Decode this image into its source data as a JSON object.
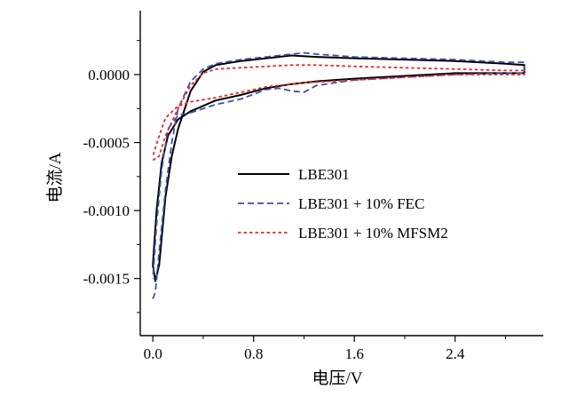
{
  "chart_data": {
    "type": "line",
    "title": "",
    "xlabel": "电压/V",
    "ylabel": "电流/A",
    "xlim": [
      -0.1,
      3.1
    ],
    "ylim": [
      -0.00192,
      0.00047
    ],
    "xticks": [
      0.0,
      0.8,
      1.6,
      2.4
    ],
    "xtick_labels": [
      "0.0",
      "0.8",
      "1.6",
      "2.4"
    ],
    "yticks": [
      0.0,
      -0.0005,
      -0.001,
      -0.0015
    ],
    "ytick_labels": [
      "0.0000",
      "-0.0005",
      "-0.0010",
      "-0.0015"
    ],
    "grid": false,
    "legend_position": "center-right",
    "series": [
      {
        "name": "LBE301",
        "color": "#000000",
        "dash": "solid",
        "x": [
          0.0,
          0.02,
          0.05,
          0.1,
          0.15,
          0.2,
          0.3,
          0.4,
          0.5,
          0.7,
          0.9,
          1.1,
          1.3,
          1.6,
          2.0,
          2.4,
          2.8,
          2.95,
          2.95,
          2.8,
          2.4,
          2.0,
          1.6,
          1.3,
          1.1,
          0.9,
          0.7,
          0.5,
          0.3,
          0.2,
          0.12,
          0.07,
          0.03,
          0.0
        ],
        "y": [
          -0.0014,
          -0.00152,
          -0.0014,
          -0.0009,
          -0.0006,
          -0.0004,
          -0.00012,
          2e-05,
          7e-05,
          0.0001,
          0.00012,
          0.00014,
          0.00013,
          0.00012,
          0.00011,
          0.0001,
          8e-05,
          7e-05,
          1e-05,
          1e-05,
          1e-05,
          -1e-05,
          -3e-05,
          -5e-05,
          -7e-05,
          -0.0001,
          -0.00015,
          -0.00019,
          -0.00027,
          -0.00033,
          -0.00045,
          -0.00065,
          -0.001,
          -0.0014
        ]
      },
      {
        "name": "LBE301 + 10% FEC",
        "color": "#3b50a6",
        "dash": "dashed",
        "x": [
          0.0,
          0.02,
          0.05,
          0.1,
          0.15,
          0.2,
          0.3,
          0.4,
          0.5,
          0.7,
          0.9,
          1.1,
          1.2,
          1.3,
          1.6,
          2.0,
          2.4,
          2.8,
          2.95,
          2.95,
          2.8,
          2.4,
          2.0,
          1.6,
          1.3,
          1.2,
          1.1,
          1.0,
          0.9,
          0.7,
          0.5,
          0.3,
          0.2,
          0.12,
          0.07,
          0.03,
          0.0
        ],
        "y": [
          -0.00165,
          -0.0016,
          -0.0013,
          -0.00085,
          -0.0005,
          -0.00025,
          -5e-05,
          4e-05,
          8e-05,
          0.00011,
          0.00013,
          0.00015,
          0.00016,
          0.00015,
          0.00013,
          0.00012,
          0.00011,
          9e-05,
          9e-05,
          1e-05,
          1e-05,
          0.0,
          -2e-05,
          -4e-05,
          -8e-05,
          -0.00013,
          -0.00012,
          -0.0001,
          -0.00011,
          -0.00018,
          -0.00022,
          -0.00028,
          -0.0003,
          -0.0004,
          -0.0007,
          -0.0011,
          -0.0015
        ]
      },
      {
        "name": "LBE301 + 10% MFSM2",
        "color": "#e8272a",
        "dash": "dotted",
        "x": [
          0.0,
          0.05,
          0.1,
          0.2,
          0.3,
          0.4,
          0.5,
          0.7,
          0.9,
          1.1,
          1.3,
          1.6,
          2.0,
          2.4,
          2.8,
          2.95,
          2.95,
          2.8,
          2.4,
          2.0,
          1.6,
          1.2,
          0.9,
          0.7,
          0.5,
          0.3,
          0.2,
          0.1,
          0.05,
          0.0
        ],
        "y": [
          -0.00063,
          -0.0006,
          -0.00045,
          -0.00025,
          -8e-05,
          1e-05,
          4e-05,
          5e-05,
          6e-05,
          7e-05,
          7e-05,
          6e-05,
          5e-05,
          4e-05,
          3e-05,
          3e-05,
          0.0,
          0.0,
          0.0,
          -2e-05,
          -4e-05,
          -6e-05,
          -9e-05,
          -0.00013,
          -0.00017,
          -0.0002,
          -0.00023,
          -0.00032,
          -0.00045,
          -0.0006
        ]
      }
    ]
  }
}
